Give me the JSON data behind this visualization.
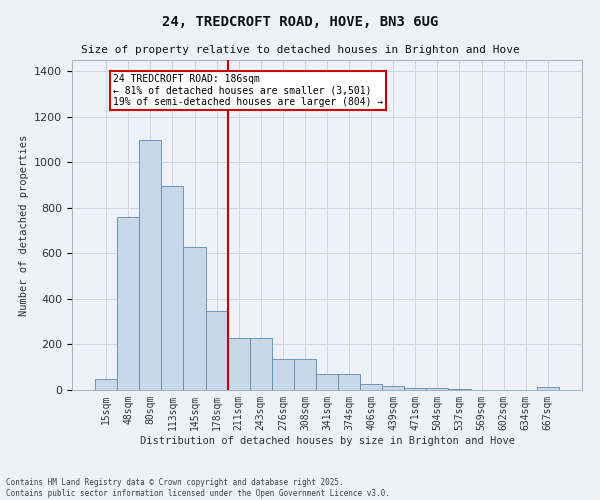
{
  "title": "24, TREDCROFT ROAD, HOVE, BN3 6UG",
  "subtitle": "Size of property relative to detached houses in Brighton and Hove",
  "xlabel": "Distribution of detached houses by size in Brighton and Hove",
  "ylabel": "Number of detached properties",
  "categories": [
    "15sqm",
    "48sqm",
    "80sqm",
    "113sqm",
    "145sqm",
    "178sqm",
    "211sqm",
    "243sqm",
    "276sqm",
    "308sqm",
    "341sqm",
    "374sqm",
    "406sqm",
    "439sqm",
    "471sqm",
    "504sqm",
    "537sqm",
    "569sqm",
    "602sqm",
    "634sqm",
    "667sqm"
  ],
  "values": [
    50,
    760,
    1100,
    895,
    630,
    345,
    230,
    230,
    135,
    135,
    70,
    70,
    28,
    18,
    10,
    10,
    5,
    2,
    0,
    0,
    12
  ],
  "bar_color": "#c8d8e8",
  "bar_edge_color": "#5a8ab0",
  "annotation_label": "24 TREDCROFT ROAD: 186sqm",
  "annotation_line1": "← 81% of detached houses are smaller (3,501)",
  "annotation_line2": "19% of semi-detached houses are larger (804) →",
  "annotation_box_color": "#ffffff",
  "annotation_box_edge": "#cc0000",
  "vline_color": "#cc0000",
  "vline_x": 5.5,
  "ylim": [
    0,
    1450
  ],
  "yticks": [
    0,
    200,
    400,
    600,
    800,
    1000,
    1200,
    1400
  ],
  "grid_color": "#ccd5e0",
  "bg_color": "#eef2f8",
  "footer1": "Contains HM Land Registry data © Crown copyright and database right 2025.",
  "footer2": "Contains public sector information licensed under the Open Government Licence v3.0."
}
